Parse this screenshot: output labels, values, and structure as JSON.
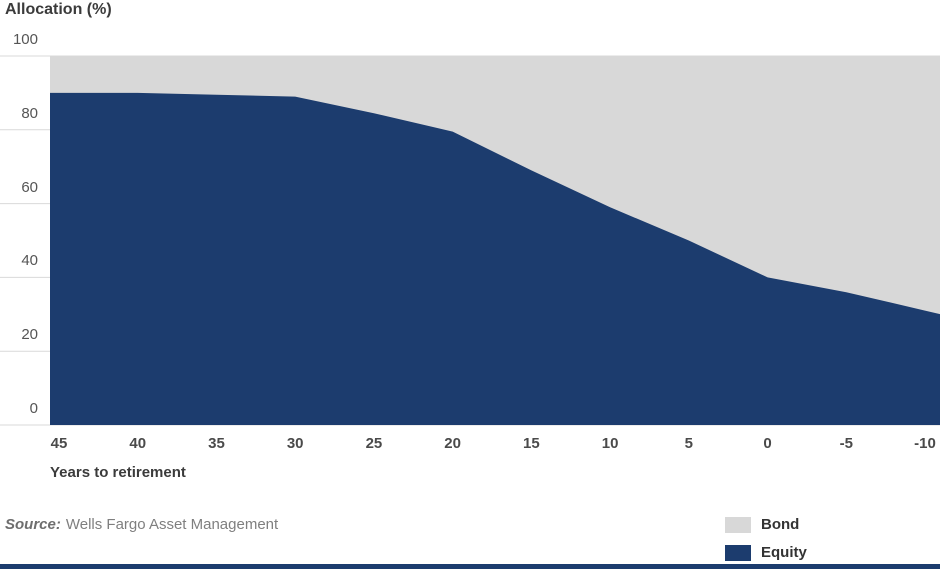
{
  "chart_data": {
    "type": "area",
    "stacked": true,
    "title": "Allocation (%)",
    "xlabel": "Years to retirement",
    "x": [
      45,
      40,
      35,
      30,
      25,
      20,
      15,
      10,
      5,
      0,
      -5,
      -10
    ],
    "x_tick_labels": [
      "45",
      "40",
      "35",
      "30",
      "25",
      "20",
      "15",
      "10",
      "5",
      "0",
      "-5",
      "-10"
    ],
    "y_ticks": [
      100,
      80,
      60,
      40,
      20,
      0
    ],
    "ylim": [
      0,
      100
    ],
    "grid": "horizontal, visible only left of plot area",
    "legend_position": "bottom-right",
    "series": [
      {
        "name": "Equity",
        "color": "#1c3c6e",
        "values": [
          90,
          90,
          89.5,
          89,
          84.5,
          79.5,
          69,
          59,
          50,
          40,
          36,
          31
        ]
      },
      {
        "name": "Bond",
        "color": "#d8d8d8",
        "values": [
          10,
          10,
          10.5,
          11,
          15.5,
          20.5,
          31,
          41,
          50,
          60,
          64,
          69
        ]
      }
    ],
    "legend": [
      {
        "label": "Bond",
        "color": "#d8d8d8"
      },
      {
        "label": "Equity",
        "color": "#1c3c6e"
      }
    ]
  },
  "source": {
    "label": "Source:",
    "text": "Wells Fargo Asset Management"
  },
  "footer_bar": {
    "color": "#1c3c6e"
  },
  "colors": {
    "equity": "#1c3c6e",
    "bond": "#d8d8d8",
    "gridline": "#d9d9d9",
    "title_text": "#3b3b3b",
    "tick_text": "#4a4a4a",
    "source_text": "#7f7f7f"
  }
}
